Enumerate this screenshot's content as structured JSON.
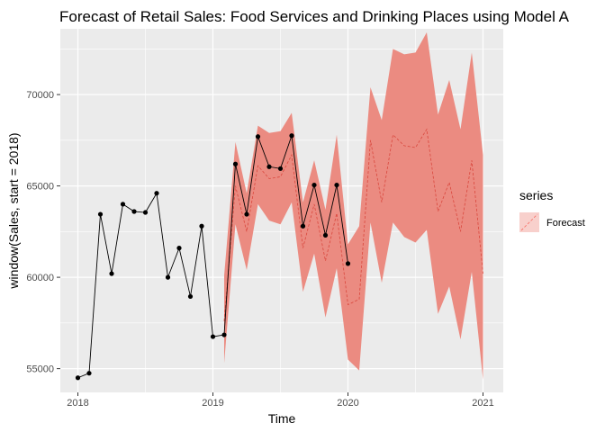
{
  "chart_data": {
    "type": "line",
    "title": "Forecast of Retail Sales: Food Services and Drinking Places using Model A",
    "xlabel": "Time",
    "ylabel": "window(Sales, start = 2018)",
    "xlim": [
      2017.87,
      2021.15
    ],
    "ylim": [
      53700,
      73600
    ],
    "x_ticks": [
      2018,
      2019,
      2020,
      2021
    ],
    "x_tick_labels": [
      "2018",
      "2019",
      "2020",
      "2021"
    ],
    "y_ticks": [
      55000,
      60000,
      65000,
      70000
    ],
    "y_tick_labels": [
      "55000",
      "60000",
      "65000",
      "70000"
    ],
    "grid": true,
    "legend": {
      "title": "series",
      "placement": "right",
      "entries": [
        "Forecast"
      ]
    },
    "colors": {
      "actual": "#000000",
      "forecast_line": "#f8766d",
      "band": "#eb8b81",
      "panel": "#ebebeb"
    },
    "series": [
      {
        "kind": "actual",
        "x": [
          2018.0,
          2018.0833,
          2018.1667,
          2018.25,
          2018.3333,
          2018.4167,
          2018.5,
          2018.5833,
          2018.6667,
          2018.75,
          2018.8333,
          2018.9167,
          2019.0,
          2019.0833,
          2019.1667,
          2019.25,
          2019.3333,
          2019.4167,
          2019.5,
          2019.5833,
          2019.6667,
          2019.75,
          2019.8333,
          2019.9167,
          2020.0
        ],
        "values": [
          54500,
          54750,
          63450,
          60200,
          64000,
          63600,
          63550,
          64600,
          60000,
          61600,
          58950,
          62800,
          56750,
          56850,
          66200,
          63450,
          67700,
          66050,
          65950,
          67750,
          62800,
          65050,
          62300,
          65050,
          60750
        ]
      },
      {
        "name": "Forecast",
        "kind": "forecast",
        "x": [
          2019.0833,
          2019.1667,
          2019.25,
          2019.3333,
          2019.4167,
          2019.5,
          2019.5833,
          2019.6667,
          2019.75,
          2019.8333,
          2019.9167,
          2020.0,
          2020.0833,
          2020.1667,
          2020.25,
          2020.3333,
          2020.4167,
          2020.5,
          2020.5833,
          2020.6667,
          2020.75,
          2020.8333,
          2020.9167,
          2021.0
        ],
        "values": [
          57600,
          65000,
          62500,
          66100,
          65400,
          65500,
          66700,
          61600,
          64000,
          60900,
          63500,
          58500,
          58800,
          67500,
          64100,
          67800,
          67200,
          67100,
          68100,
          63600,
          65200,
          62500,
          66400,
          60200
        ],
        "lower": [
          55300,
          62900,
          60400,
          64000,
          63100,
          62900,
          64100,
          59200,
          61300,
          57800,
          60500,
          55500,
          54900,
          63000,
          59700,
          63000,
          62200,
          61900,
          62600,
          58000,
          59500,
          56600,
          60300,
          54400
        ],
        "upper": [
          60100,
          67400,
          64600,
          68300,
          67900,
          68000,
          69000,
          64100,
          66400,
          63700,
          67800,
          61800,
          62800,
          70400,
          68600,
          72500,
          72200,
          72300,
          73400,
          68900,
          70800,
          68100,
          72300,
          66700
        ]
      }
    ]
  }
}
